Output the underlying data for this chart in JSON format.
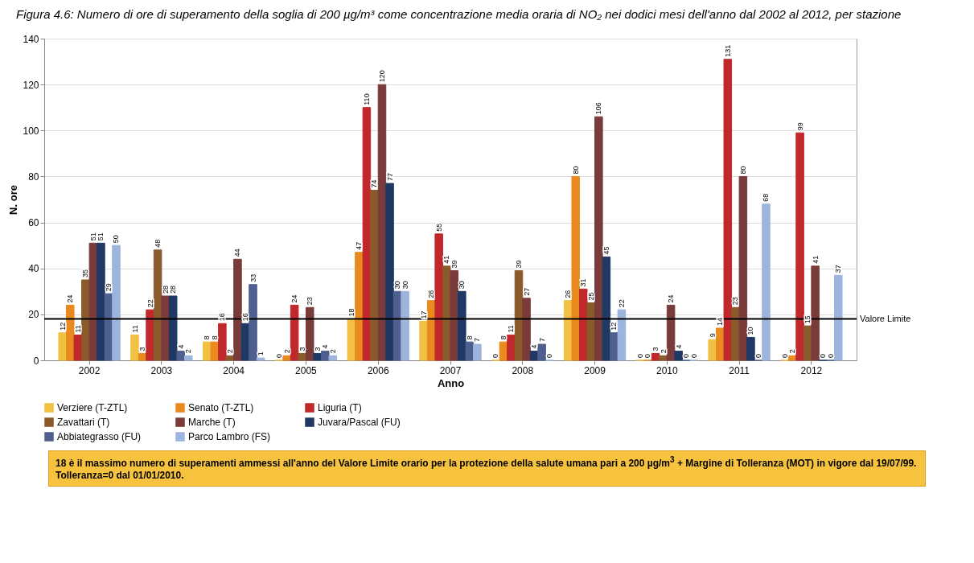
{
  "chart_data": {
    "type": "bar",
    "title": "Figura 4.6: Numero di ore di superamento della soglia di 200 µg/m³ come concentrazione media oraria di NO₂ nei dodici mesi dell'anno dal 2002 al 2012, per stazione",
    "xlabel": "Anno",
    "ylabel": "N. ore",
    "categories": [
      "2002",
      "2003",
      "2004",
      "2005",
      "2006",
      "2007",
      "2008",
      "2009",
      "2010",
      "2011",
      "2012"
    ],
    "series": [
      {
        "name": "Verziere (T-ZTL)",
        "color": "#f2c143",
        "values": [
          12,
          11,
          8,
          0,
          18,
          17,
          0,
          26,
          0,
          9,
          0
        ]
      },
      {
        "name": "Senato (T-ZTL)",
        "color": "#e98a1f",
        "values": [
          24,
          3,
          8,
          2,
          47,
          26,
          8,
          80,
          0,
          14,
          2
        ]
      },
      {
        "name": "Liguria (T)",
        "color": "#c0282b",
        "values": [
          11,
          22,
          16,
          24,
          110,
          55,
          11,
          31,
          3,
          131,
          99
        ]
      },
      {
        "name": "Zavattari (T)",
        "color": "#8b5a2b",
        "values": [
          35,
          48,
          2,
          3,
          74,
          41,
          39,
          25,
          2,
          23,
          15
        ]
      },
      {
        "name": "Marche (T)",
        "color": "#7a3b3b",
        "values": [
          51,
          28,
          44,
          23,
          120,
          39,
          27,
          106,
          24,
          80,
          41
        ]
      },
      {
        "name": "Juvara/Pascal (FU)",
        "color": "#1f3864",
        "values": [
          51,
          28,
          16,
          3,
          77,
          30,
          4,
          45,
          4,
          10,
          0
        ]
      },
      {
        "name": "Abbiategrasso (FU)",
        "color": "#4f5f8f",
        "values": [
          29,
          4,
          33,
          4,
          30,
          8,
          7,
          12,
          0,
          0,
          0
        ]
      },
      {
        "name": "Parco Lambro (FS)",
        "color": "#9db4dc",
        "values": [
          50,
          2,
          1,
          2,
          30,
          7,
          0,
          22,
          0,
          68,
          37
        ]
      }
    ],
    "ylim": [
      0,
      140
    ],
    "yticks": [
      0,
      20,
      40,
      60,
      80,
      100,
      120,
      140
    ],
    "grid": "y",
    "legend": "bottom",
    "data_labels": true,
    "ref_lines": [
      {
        "axis": "y",
        "value": 18,
        "label": "Valore Limite",
        "color": "#000000"
      }
    ],
    "annotations": [
      "18 è il massimo numero di superamenti ammessi all'anno del Valore Limite orario per la protezione della salute umana pari a 200 µg/m$^{3}$ + Margine di Tolleranza (MOT) in vigore dal 19/07/99. Tolleranza=0 dal 01/01/2010."
    ]
  }
}
